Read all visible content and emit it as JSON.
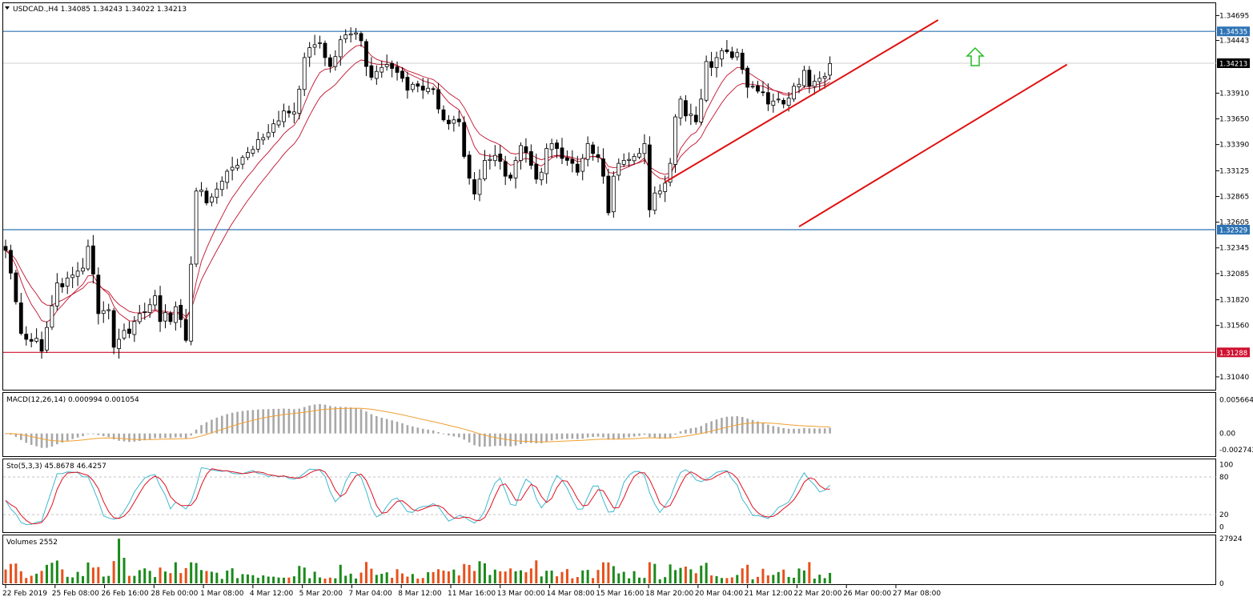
{
  "chart_data": [
    {
      "id": "price",
      "type": "candlestick",
      "symbol_info": "USDCAD.,H4  1.34085 1.34243 1.34022 1.34213",
      "ylim": [
        1.3091,
        1.3482
      ],
      "y_ticks": [
        "1.34695",
        "1.34443",
        "1.33910",
        "1.33650",
        "1.33390",
        "1.33125",
        "1.32865",
        "1.32605",
        "1.32345",
        "1.32085",
        "1.31820",
        "1.31560",
        "1.31040"
      ],
      "x_ticks": [
        "22 Feb 2019",
        "25 Feb 08:00",
        "26 Feb 16:00",
        "28 Feb 00:00",
        "1 Mar 08:00",
        "4 Mar 12:00",
        "5 Mar 20:00",
        "7 Mar 04:00",
        "8 Mar 12:00",
        "11 Mar 16:00",
        "13 Mar 00:00",
        "14 Mar 08:00",
        "15 Mar 16:00",
        "18 Mar 20:00",
        "20 Mar 04:00",
        "21 Mar 12:00",
        "22 Mar 20:00",
        "26 Mar 00:00",
        "27 Mar 08:00"
      ],
      "current_price": "1.34213",
      "horizontal_levels": [
        {
          "value": 1.34535,
          "label": "1.34535",
          "color": "#2e74b5"
        },
        {
          "value": 1.32529,
          "label": "1.32529",
          "color": "#2e74b5"
        },
        {
          "value": 1.31288,
          "label": "1.31288",
          "color": "#d01030"
        }
      ],
      "trend_lines": [
        {
          "from": [
            128,
            1.3301
          ],
          "to": [
            181,
            1.3465
          ]
        },
        {
          "from": [
            154,
            1.3256
          ],
          "to": [
            206,
            1.342
          ]
        }
      ],
      "arrow": {
        "direction": "up",
        "color": "#22bb22"
      },
      "ma_color": "#c0102a",
      "closes": [
        1.3232,
        1.3209,
        1.318,
        1.3148,
        1.3142,
        1.314,
        1.3143,
        1.313,
        1.3154,
        1.3176,
        1.3199,
        1.3195,
        1.3204,
        1.3207,
        1.3211,
        1.3214,
        1.3236,
        1.3208,
        1.3168,
        1.3171,
        1.3172,
        1.3134,
        1.3142,
        1.3151,
        1.3148,
        1.316,
        1.3168,
        1.317,
        1.3177,
        1.3186,
        1.316,
        1.3169,
        1.316,
        1.3175,
        1.3162,
        1.3141,
        1.3218,
        1.3292,
        1.3293,
        1.328,
        1.3286,
        1.3294,
        1.3302,
        1.3312,
        1.3316,
        1.3318,
        1.3326,
        1.3331,
        1.3334,
        1.3344,
        1.3346,
        1.3351,
        1.336,
        1.3363,
        1.3373,
        1.3371,
        1.3372,
        1.3395,
        1.3427,
        1.3437,
        1.344,
        1.3442,
        1.3427,
        1.3418,
        1.3428,
        1.3445,
        1.345,
        1.3451,
        1.3452,
        1.3444,
        1.3418,
        1.3407,
        1.3413,
        1.3417,
        1.342,
        1.3416,
        1.3412,
        1.3406,
        1.3394,
        1.34,
        1.3398,
        1.3394,
        1.3396,
        1.3395,
        1.3375,
        1.3364,
        1.336,
        1.3364,
        1.3362,
        1.3327,
        1.3305,
        1.3289,
        1.3304,
        1.3323,
        1.3324,
        1.3328,
        1.3322,
        1.3307,
        1.3305,
        1.3323,
        1.3338,
        1.3331,
        1.3318,
        1.3304,
        1.3311,
        1.3335,
        1.334,
        1.3335,
        1.3325,
        1.3323,
        1.332,
        1.3311,
        1.3325,
        1.334,
        1.333,
        1.3326,
        1.3307,
        1.327,
        1.3307,
        1.332,
        1.3323,
        1.3324,
        1.3327,
        1.333,
        1.334,
        1.3273,
        1.329,
        1.3292,
        1.33,
        1.332,
        1.3367,
        1.3385,
        1.3368,
        1.337,
        1.3362,
        1.3385,
        1.3423,
        1.3417,
        1.3427,
        1.3434,
        1.3433,
        1.3427,
        1.3432,
        1.3415,
        1.3397,
        1.3398,
        1.3393,
        1.3392,
        1.338,
        1.3383,
        1.3385,
        1.338,
        1.3386,
        1.3398,
        1.34,
        1.3414,
        1.3398,
        1.3403,
        1.3406,
        1.3408,
        1.3421
      ]
    },
    {
      "id": "macd",
      "type": "histogram+line",
      "label": "MACD(12,26,14) 0.000994 0.001054",
      "y_ticks": [
        "0.005664",
        "0.00",
        "-0.002742"
      ],
      "ylim": [
        -0.0038,
        0.0068
      ],
      "histogram_color": "#a8a8a8",
      "signal_color": "#f0a030"
    },
    {
      "id": "stochastic",
      "type": "line",
      "label": "Sto(5,3,3) 45.8678 46.4257",
      "y_ticks": [
        "100",
        "80",
        "20",
        "0"
      ],
      "ylim": [
        -8,
        108
      ],
      "main_color": "#40b8d0",
      "signal_color": "#e01020"
    },
    {
      "id": "volumes",
      "type": "bar",
      "label": "Volumes 2552",
      "y_ticks": [
        "27924",
        "0"
      ],
      "ylim": [
        0,
        30000
      ],
      "up_color": "#1a8a1a",
      "down_color": "#e8501a"
    }
  ]
}
